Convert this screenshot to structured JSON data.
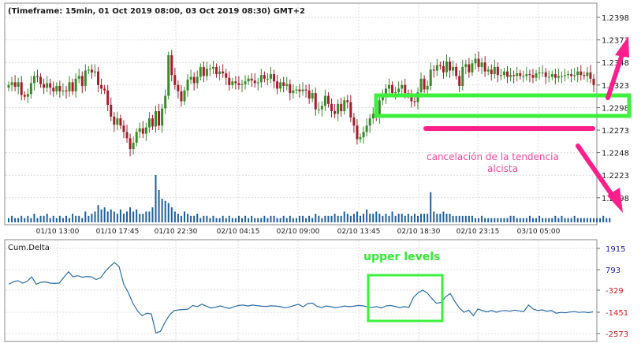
{
  "header": {
    "title": "(Timeframe: 15min, 01 Oct 2019 08:00, 03 Oct 2019 08:30) GMT+2"
  },
  "price_axis": {
    "labels": [
      "1.2398",
      "1.2373",
      "1.2348",
      "1.2323",
      "1.2298",
      "1.2273",
      "1.2248",
      "1.2223",
      "1.2198"
    ]
  },
  "time_axis": {
    "labels": [
      "01/10 13:00",
      "01/10 17:45",
      "01/10 22:30",
      "02/10 04:15",
      "02/10 09:00",
      "02/10 13:45",
      "02/10 18:30",
      "02/10 23:15",
      "03/10 05:00"
    ]
  },
  "delta_panel": {
    "title": "Cum.Delta",
    "labels": [
      "1915",
      "793",
      "-329",
      "-1451",
      "-2573"
    ],
    "label_colors": [
      "#1a1aa6",
      "#1a1aa6",
      "#d11a1a",
      "#d11a1a",
      "#d11a1a"
    ]
  },
  "annotations": {
    "cancel_text_line1": "cancelación de la tendencia",
    "cancel_text_line2": "alcista",
    "upper_levels": "upper levels"
  },
  "colors": {
    "up": "#3a8a2a",
    "down": "#a41d2b",
    "volume": "#1f5f9f",
    "delta_line": "#2a6ea8",
    "green_box": "#3cf03c",
    "pink": "#ff1f8a",
    "grid": "#dcdcdc"
  },
  "chart_data": [
    {
      "type": "candlestick",
      "title": "(Timeframe: 15min, 01 Oct 2019 08:00, 03 Oct 2019 08:30) GMT+2",
      "ylim": [
        1.219,
        1.2408
      ],
      "close": [
        1.2323,
        1.2326,
        1.2321,
        1.2326,
        1.2312,
        1.231,
        1.2313,
        1.2325,
        1.2333,
        1.2332,
        1.2324,
        1.232,
        1.2325,
        1.232,
        1.2316,
        1.2322,
        1.2316,
        1.2317,
        1.2316,
        1.2326,
        1.2316,
        1.233,
        1.2333,
        1.2322,
        1.2339,
        1.234,
        1.2337,
        1.2338,
        1.2323,
        1.2319,
        1.2317,
        1.2301,
        1.2288,
        1.2279,
        1.2286,
        1.2278,
        1.2271,
        1.2264,
        1.2252,
        1.2259,
        1.2271,
        1.2275,
        1.2269,
        1.2276,
        1.2286,
        1.2277,
        1.2294,
        1.2278,
        1.2297,
        1.2311,
        1.2356,
        1.2334,
        1.2323,
        1.2316,
        1.2305,
        1.2317,
        1.2329,
        1.2332,
        1.2325,
        1.2332,
        1.2343,
        1.2333,
        1.2341,
        1.2341,
        1.2343,
        1.2335,
        1.2338,
        1.2336,
        1.2331,
        1.2323,
        1.2327,
        1.2325,
        1.2323,
        1.2324,
        1.2327,
        1.233,
        1.2328,
        1.2325,
        1.2326,
        1.2334,
        1.233,
        1.233,
        1.2335,
        1.2327,
        1.2319,
        1.2326,
        1.2322,
        1.2324,
        1.2314,
        1.2317,
        1.2318,
        1.2316,
        1.2318,
        1.2317,
        1.2308,
        1.2314,
        1.2296,
        1.2296,
        1.23,
        1.2311,
        1.2302,
        1.2294,
        1.2291,
        1.2302,
        1.2294,
        1.2306,
        1.2304,
        1.2287,
        1.2278,
        1.2263,
        1.2265,
        1.2271,
        1.2278,
        1.2286,
        1.2291,
        1.2287,
        1.2306,
        1.231,
        1.2319,
        1.2323,
        1.2314,
        1.2315,
        1.2319,
        1.2323,
        1.2314,
        1.2312,
        1.2305,
        1.2304,
        1.2315,
        1.233,
        1.2318,
        1.2322,
        1.234,
        1.2339,
        1.2345,
        1.2344,
        1.2337,
        1.2349,
        1.2339,
        1.2343,
        1.2333,
        1.2322,
        1.2343,
        1.2346,
        1.2337,
        1.2347,
        1.2352,
        1.2343,
        1.2348,
        1.2338,
        1.234,
        1.2335,
        1.2343,
        1.2334,
        1.2334,
        1.2338,
        1.2332,
        1.2334,
        1.2333,
        1.2336,
        1.2333,
        1.2333,
        1.2335,
        1.2334,
        1.2331,
        1.2336,
        1.2337,
        1.2337,
        1.2332,
        1.2332,
        1.2335,
        1.2331,
        1.2333,
        1.2333,
        1.2334,
        1.2335,
        1.2333,
        1.2334,
        1.2338,
        1.2334,
        1.2333,
        1.2337,
        1.233,
        1.2323
      ]
    },
    {
      "type": "bar",
      "title": "",
      "values": [
        2,
        3,
        2,
        2,
        3,
        2,
        3,
        2,
        4,
        2,
        3,
        3,
        4,
        2,
        3,
        2,
        3,
        2,
        3,
        2,
        4,
        3,
        3,
        2,
        5,
        3,
        4,
        5,
        8,
        6,
        7,
        5,
        6,
        5,
        4,
        6,
        4,
        5,
        7,
        5,
        6,
        4,
        4,
        5,
        5,
        7,
        22,
        15,
        11,
        10,
        9,
        7,
        5,
        4,
        3,
        5,
        4,
        3,
        3,
        4,
        2,
        3,
        3,
        2,
        3,
        2,
        2,
        3,
        2,
        3,
        2,
        2,
        3,
        2,
        3,
        2,
        3,
        2,
        2,
        2,
        3,
        2,
        3,
        3,
        2,
        2,
        3,
        2,
        3,
        2,
        2,
        3,
        3,
        2,
        3,
        2,
        4,
        3,
        2,
        3,
        3,
        3,
        4,
        3,
        3,
        5,
        4,
        3,
        4,
        5,
        3,
        4,
        6,
        4,
        4,
        5,
        4,
        3,
        4,
        3,
        5,
        3,
        4,
        4,
        3,
        4,
        3,
        4,
        3,
        4,
        4,
        4,
        14,
        5,
        4,
        4,
        5,
        4,
        4,
        3,
        3,
        3,
        3,
        3,
        3,
        3,
        2,
        2,
        3,
        2,
        2,
        2,
        2,
        2,
        2,
        2,
        2,
        3,
        3,
        2,
        2,
        2,
        2,
        3,
        2,
        2,
        3,
        2,
        2,
        2,
        2,
        3,
        2,
        3,
        2,
        2,
        2,
        3,
        2,
        2,
        2,
        2,
        2,
        2,
        2,
        2,
        3,
        2,
        2
      ]
    },
    {
      "type": "line",
      "title": "Cum.Delta",
      "ylim": [
        -2750,
        2100
      ],
      "series": [
        {
          "name": "Cum.Delta",
          "values": [
            -20,
            100,
            160,
            40,
            120,
            360,
            -20,
            80,
            100,
            40,
            20,
            40,
            340,
            620,
            360,
            420,
            340,
            380,
            360,
            220,
            320,
            640,
            900,
            1100,
            900,
            -20,
            -450,
            -1000,
            -1400,
            -1650,
            -1520,
            -1560,
            -2540,
            -2460,
            -1980,
            -1600,
            -1380,
            -1350,
            -1330,
            -1310,
            -1120,
            -1180,
            -1050,
            -1160,
            -1250,
            -1210,
            -1140,
            -1220,
            -1270,
            -1180,
            -1120,
            -1100,
            -1150,
            -1100,
            -1130,
            -1160,
            -1170,
            -1140,
            -1150,
            -1180,
            -1240,
            -1200,
            -1130,
            -1060,
            -1200,
            -1020,
            -1000,
            -1160,
            -1230,
            -1150,
            -1180,
            -1230,
            -1200,
            -1150,
            -1180,
            -1160,
            -1120,
            -1140,
            -1190,
            -1220,
            -1180,
            -1250,
            -1150,
            -1120,
            -1170,
            -1230,
            -1180,
            -1220,
            -700,
            -470,
            -330,
            -480,
            -760,
            -1010,
            -960,
            -670,
            -500,
            -920,
            -1260,
            -1470,
            -1360,
            -1650,
            -1300,
            -1390,
            -1450,
            -1380,
            -1470,
            -1400,
            -1380,
            -1420,
            -1360,
            -1400,
            -1430,
            -1100,
            -1300,
            -1380,
            -1350,
            -1420,
            -1380,
            -1520,
            -1480,
            -1500,
            -1460,
            -1440,
            -1480,
            -1460,
            -1490,
            -1450
          ]
        }
      ]
    }
  ]
}
